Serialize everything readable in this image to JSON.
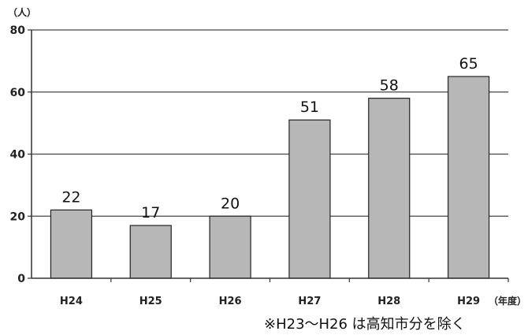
{
  "chart_data": {
    "type": "bar",
    "categories": [
      "H24",
      "H25",
      "H26",
      "H27",
      "H28",
      "H29"
    ],
    "values": [
      22,
      17,
      20,
      51,
      58,
      65
    ],
    "ylim": [
      0,
      80
    ],
    "yticks": [
      "0",
      "20",
      "40",
      "60",
      "80"
    ],
    "y_unit": "（人）",
    "x_unit": "（年度）",
    "note": "※H23～H26 は高知市分を除く",
    "grid": true,
    "bar_color": "#b7b7b7"
  }
}
